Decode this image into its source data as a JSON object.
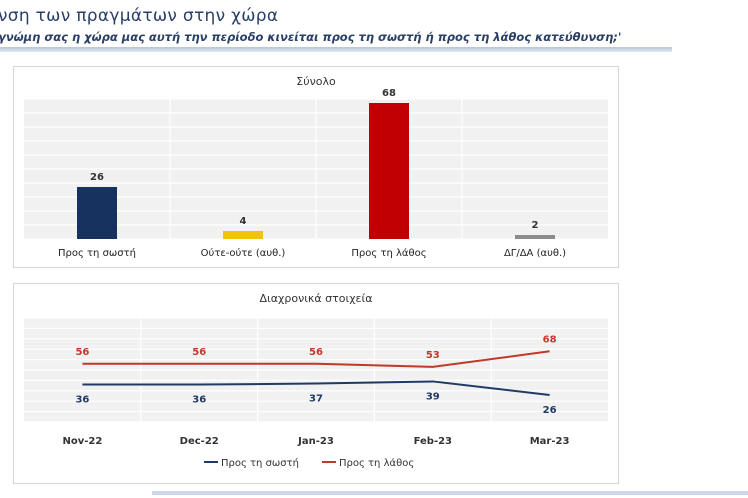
{
  "header": {
    "title": "νση των πραγμάτων στην χώρα",
    "question": "γνώμη σας η χώρα μας αυτή την περίοδο κινείται προς τη σωστή ή προς τη λάθος κατεύθυνση;'"
  },
  "chart_data": [
    {
      "type": "bar",
      "title": "Σύνολο",
      "categories": [
        "Προς τη σωστή",
        "Ούτε-ούτε (αυθ.)",
        "Προς τη λάθος",
        "ΔΓ/ΔΑ (αυθ.)"
      ],
      "values": [
        26,
        4,
        68,
        2
      ],
      "colors": [
        "#17325e",
        "#f2c30c",
        "#c00000",
        "#8c8c8c"
      ],
      "ylim": [
        0,
        70
      ],
      "grid": true
    },
    {
      "type": "line",
      "title": "Διαχρονικά στοιχεία",
      "x": [
        "Nov-22",
        "Dec-22",
        "Jan-23",
        "Feb-23",
        "Mar-23"
      ],
      "series": [
        {
          "name": "Προς τη σωστή",
          "values": [
            36,
            36,
            37,
            39,
            26
          ],
          "color": "#1f3a64"
        },
        {
          "name": "Προς τη λάθος",
          "values": [
            56,
            56,
            56,
            53,
            68
          ],
          "color": "#c0392b"
        }
      ],
      "ylim": [
        0,
        100
      ],
      "grid": true,
      "legend": "bottom"
    }
  ]
}
